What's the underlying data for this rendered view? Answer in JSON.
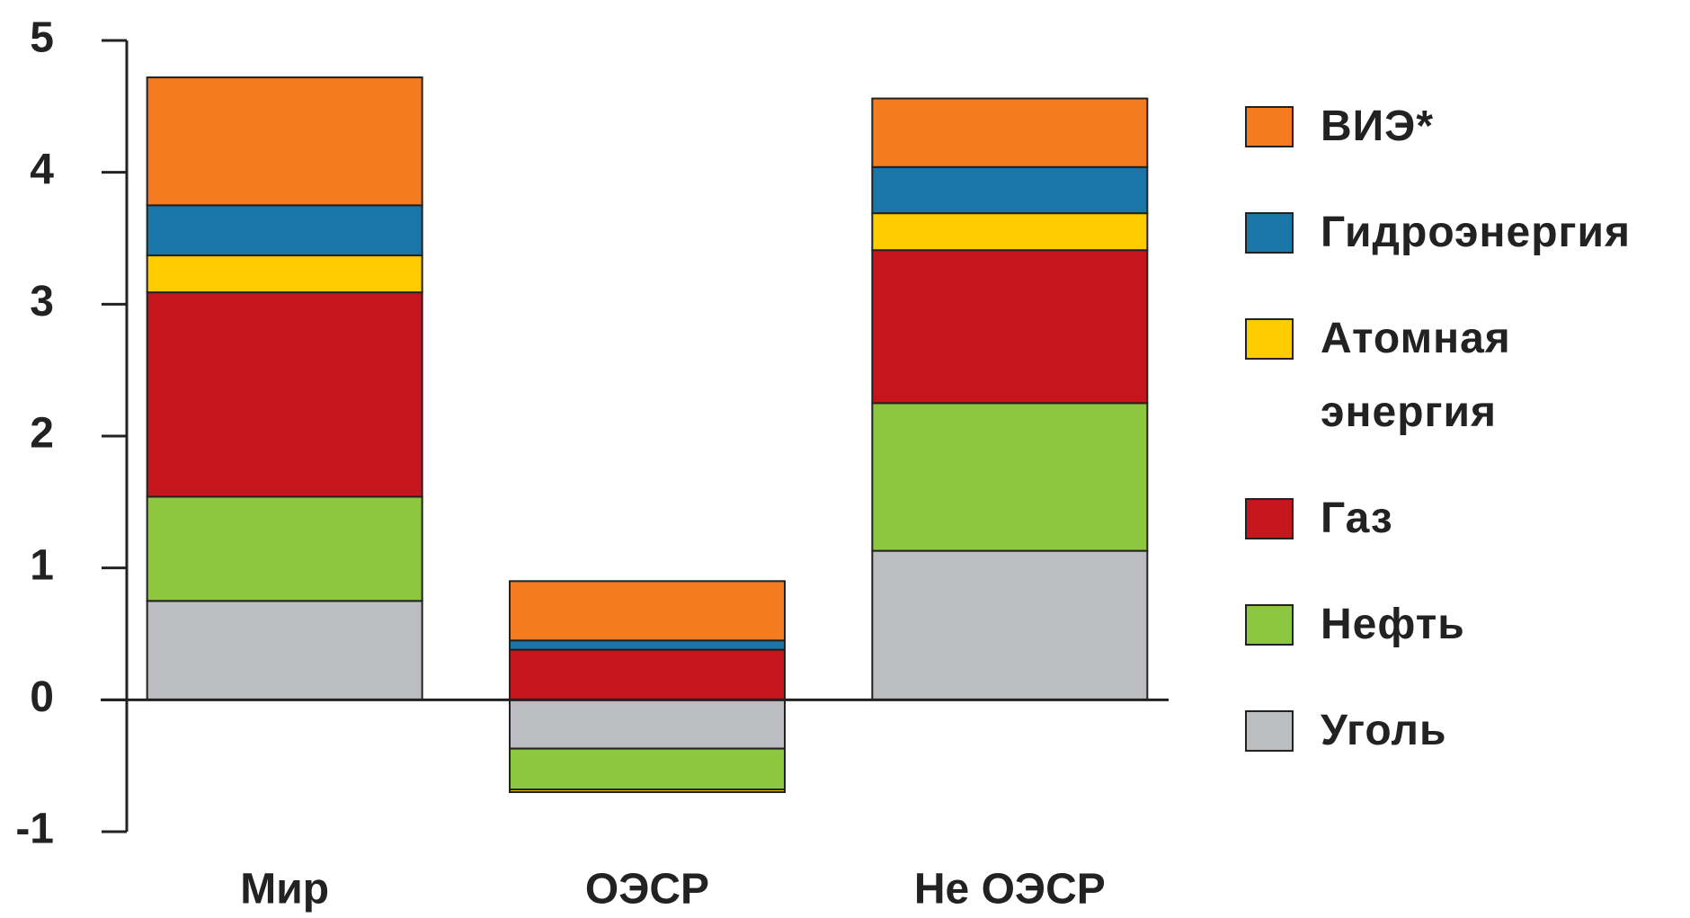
{
  "chart_data": {
    "type": "stacked_bar",
    "categories": [
      "Мир",
      "ОЭСР",
      "Не ОЭСР"
    ],
    "series": [
      {
        "name": "Уголь",
        "color": "#bcbdc1",
        "values": [
          0.75,
          -0.37,
          1.13
        ]
      },
      {
        "name": "Нефть",
        "color": "#8dc63f",
        "values": [
          0.79,
          -0.31,
          1.12
        ]
      },
      {
        "name": "Газ",
        "color": "#c4161c",
        "values": [
          1.55,
          0.38,
          1.16
        ]
      },
      {
        "name": "Атомная энергия",
        "color": "#ffcc00",
        "values": [
          0.28,
          -0.02,
          0.28
        ]
      },
      {
        "name": "Гидроэнергия",
        "color": "#1a75a8",
        "values": [
          0.38,
          0.07,
          0.35
        ]
      },
      {
        "name": "ВИЭ*",
        "color": "#f47b20",
        "values": [
          0.97,
          0.45,
          0.52
        ]
      }
    ],
    "ylim": [
      -1,
      5
    ],
    "yticks": [
      -1,
      0,
      1,
      2,
      3,
      4,
      5
    ],
    "legend": "right"
  }
}
